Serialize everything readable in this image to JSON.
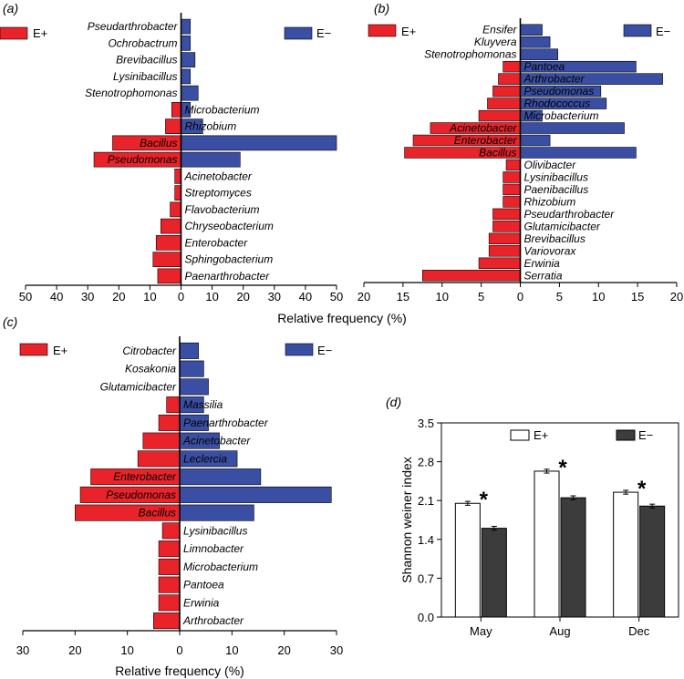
{
  "colors": {
    "e_plus": "#e8232a",
    "e_minus": "#3a4fa3",
    "bar_white": "#ffffff",
    "bar_dark": "#3c3c3c"
  },
  "legend": {
    "plus": "E+",
    "minus": "E−"
  },
  "shared": {
    "xlabel": "Relative frequency (%)"
  },
  "chart_data": [
    {
      "panel": "(a)",
      "type": "bar",
      "orientation": "horizontal-diverging",
      "xlim": [
        -50,
        50
      ],
      "xticks": [
        "50",
        "40",
        "30",
        "20",
        "10",
        "0",
        "10",
        "20",
        "30",
        "40",
        "50"
      ],
      "categories": [
        "Pseudarthrobacter",
        "Ochrobactrum",
        "Brevibacillus",
        "Lysinibacillus",
        "Stenotrophomonas",
        "Microbacterium",
        "Rhizobium",
        "Bacillus",
        "Pseudomonas",
        "Acinetobacter",
        "Streptomyces",
        "Flavobacterium",
        "Chryseobacterium",
        "Enterobacter",
        "Sphingobacterium",
        "Paenarthrobacter"
      ],
      "series": [
        {
          "name": "E+",
          "values": [
            0,
            0,
            0,
            0,
            0,
            3,
            5,
            22,
            28,
            2,
            2,
            3.5,
            6.5,
            8,
            9,
            7.5
          ]
        },
        {
          "name": "E−",
          "values": [
            3,
            3,
            4.5,
            3,
            5.5,
            3,
            7,
            50,
            19,
            0,
            0,
            0,
            0,
            0,
            0,
            0
          ]
        }
      ],
      "inside_labels": [
        "Bacillus",
        "Pseudomonas"
      ]
    },
    {
      "panel": "(b)",
      "type": "bar",
      "orientation": "horizontal-diverging",
      "xlim": [
        -20,
        20
      ],
      "xticks": [
        "20",
        "15",
        "10",
        "5",
        "0",
        "5",
        "10",
        "15",
        "20"
      ],
      "categories": [
        "Ensifer",
        "Kluyvera",
        "Stenotrophomonas",
        "Pantoea",
        "Arthrobacter",
        "Pseudomonas",
        "Rhodococcus",
        "Microbacterium",
        "Acinetobacter",
        "Enterobacter",
        "Bacillus",
        "Olivibacter",
        "Lysinibacillus",
        "Paenibacillus",
        "Rhizobium",
        "Pseudarthrobacter",
        "Glutamicibacter",
        "Brevibacillus",
        "Variovorax",
        "Erwinia",
        "Serratia"
      ],
      "series": [
        {
          "name": "E+",
          "values": [
            0,
            0,
            0,
            2.2,
            2.8,
            3.5,
            4.2,
            5.3,
            11.5,
            13.7,
            14.8,
            1.8,
            2.2,
            2.2,
            2.2,
            3.5,
            3.5,
            4,
            4,
            5.3,
            12.5
          ]
        },
        {
          "name": "E−",
          "values": [
            2.8,
            3.8,
            4.8,
            14.8,
            18.2,
            10.3,
            11,
            2.8,
            13.3,
            3.8,
            14.8,
            0,
            0,
            0,
            0,
            0,
            0,
            0,
            0,
            0,
            0
          ]
        }
      ],
      "inside_labels": [
        "Acinetobacter",
        "Enterobacter",
        "Bacillus"
      ]
    },
    {
      "panel": "(c)",
      "type": "bar",
      "orientation": "horizontal-diverging",
      "xlim": [
        -30,
        30
      ],
      "xticks": [
        "30",
        "20",
        "10",
        "0",
        "10",
        "20",
        "30"
      ],
      "xlabel": "Relative frequency (%)",
      "categories": [
        "Citrobacter",
        "Kosakonia",
        "Glutamicibacter",
        "Massilia",
        "Paenarthrobacter",
        "Acinetobacter",
        "Leclercia",
        "Enterobacter",
        "Pseudomonas",
        "Bacillus",
        "Lysinibacillus",
        "Limnobacter",
        "Microbacterium",
        "Pantoea",
        "Erwinia",
        "Arthrobacter"
      ],
      "series": [
        {
          "name": "E+",
          "values": [
            0,
            0,
            0,
            2.5,
            4,
            7,
            8,
            17,
            19,
            20,
            3.3,
            4,
            4,
            4,
            4,
            5
          ]
        },
        {
          "name": "E−",
          "values": [
            3.6,
            4.6,
            5.5,
            4.6,
            5.5,
            7.6,
            11,
            15.5,
            29,
            14.2,
            0,
            0,
            0,
            0,
            0,
            0
          ]
        }
      ],
      "inside_labels": [
        "Enterobacter",
        "Pseudomonas",
        "Bacillus"
      ]
    },
    {
      "panel": "(d)",
      "type": "bar",
      "ylabel": "Shannon weiner index",
      "ylim": [
        0,
        3.5
      ],
      "yticks": [
        "0.0",
        "0.7",
        "1.4",
        "2.1",
        "2.8",
        "3.5"
      ],
      "categories": [
        "May",
        "Aug",
        "Dec"
      ],
      "series": [
        {
          "name": "E+",
          "values": [
            2.05,
            2.63,
            2.25
          ]
        },
        {
          "name": "E−",
          "values": [
            1.6,
            2.15,
            2.0
          ]
        }
      ],
      "significance_marker": "*"
    }
  ]
}
